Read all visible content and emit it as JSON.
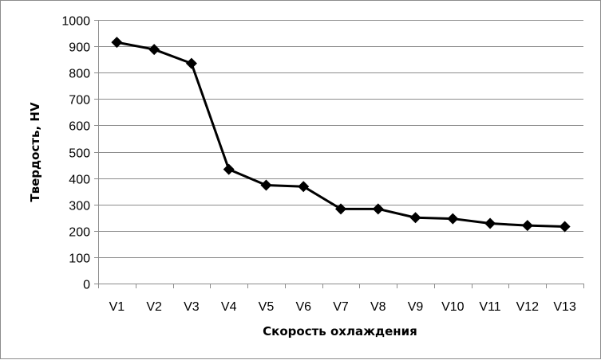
{
  "chart_data": {
    "type": "line",
    "xlabel": "Скорость охлаждения",
    "ylabel": "Твердость, HV",
    "categories": [
      "V1",
      "V2",
      "V3",
      "V4",
      "V5",
      "V6",
      "V7",
      "V8",
      "V9",
      "V10",
      "V11",
      "V12",
      "V13"
    ],
    "series": [
      {
        "values": [
          915,
          888,
          835,
          433,
          373,
          368,
          283,
          283,
          250,
          246,
          228,
          220,
          216
        ]
      }
    ],
    "ylim": [
      0,
      1000
    ],
    "yticks": [
      0,
      100,
      200,
      300,
      400,
      500,
      600,
      700,
      800,
      900,
      1000
    ],
    "grid": true,
    "legend": "none",
    "line_color": "#000000",
    "grid_color": "#8c8c8c"
  }
}
